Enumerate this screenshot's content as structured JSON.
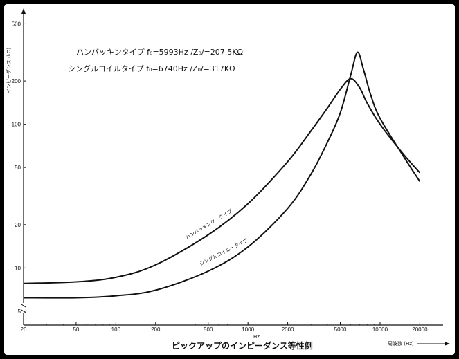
{
  "chart_data": {
    "type": "line",
    "title": "ピックアップのインピーダンス等性例",
    "ylabel": "インピーダンス (kΩ)",
    "xlabel": "周波数 (Hz)",
    "x_unit_under_axis": "Hz",
    "x_scale": "log",
    "y_scale": "log",
    "xlim": [
      20,
      30000
    ],
    "ylim": [
      4,
      600
    ],
    "x_ticks": [
      20,
      50,
      100,
      200,
      500,
      1000,
      2000,
      5000,
      10000,
      20000
    ],
    "y_ticks": [
      5,
      10,
      20,
      50,
      100,
      200,
      500
    ],
    "annotations": [
      "ハンバッキンタイプ f₀=5993Hz /Z₀/=207.5KΩ",
      "シングルコイルタイプ f₀=6740Hz /Z₀/=317KΩ"
    ],
    "series": [
      {
        "name": "ハンバッキング・タイプ",
        "x": [
          20,
          50,
          100,
          200,
          500,
          1000,
          2000,
          3000,
          4000,
          5000,
          5993,
          7000,
          8000,
          10000,
          15000,
          20000
        ],
        "y": [
          7.8,
          8.0,
          8.6,
          10.5,
          17,
          28,
          55,
          90,
          130,
          175,
          207.5,
          180,
          140,
          100,
          62,
          46
        ]
      },
      {
        "name": "シングルコイル・タイプ",
        "x": [
          20,
          50,
          100,
          200,
          500,
          1000,
          2000,
          3000,
          4000,
          5000,
          6000,
          6740,
          7500,
          8500,
          10000,
          15000,
          20000
        ],
        "y": [
          6.2,
          6.2,
          6.4,
          7.0,
          9.5,
          14,
          26,
          45,
          75,
          120,
          220,
          317,
          240,
          160,
          110,
          60,
          40
        ]
      }
    ]
  }
}
